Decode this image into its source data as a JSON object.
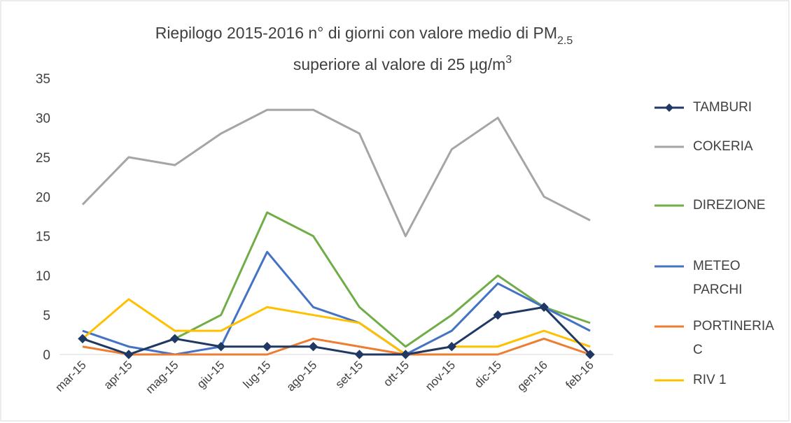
{
  "chart_data": {
    "type": "line",
    "title": {
      "line1": "Riepilogo  2015-2016 n° di giorni con valore medio di PM",
      "line1_sub": "2.5",
      "line2": "superiore al valore di 25 µg/m",
      "line2_sup": "3"
    },
    "categories": [
      "mar-15",
      "apr-15",
      "mag-15",
      "giu-15",
      "lug-15",
      "ago-15",
      "set-15",
      "ott-15",
      "nov-15",
      "dic-15",
      "gen-16",
      "feb-16"
    ],
    "series": [
      {
        "name": "TAMBURI",
        "color": "#1f3864",
        "marker": "diamond",
        "values": [
          2,
          0,
          2,
          1,
          1,
          1,
          0,
          0,
          1,
          5,
          6,
          0
        ]
      },
      {
        "name": "COKERIA",
        "color": "#a5a5a5",
        "values": [
          19,
          25,
          24,
          28,
          31,
          31,
          28,
          15,
          26,
          30,
          20,
          17
        ]
      },
      {
        "name": "DIREZIONE",
        "color": "#70ad47",
        "values": [
          2,
          0,
          2,
          5,
          18,
          15,
          6,
          1,
          5,
          10,
          6,
          4
        ]
      },
      {
        "name": "METEO PARCHI",
        "color": "#4472c4",
        "values": [
          3,
          1,
          0,
          1,
          13,
          6,
          4,
          0,
          3,
          9,
          6,
          3
        ]
      },
      {
        "name": "PORTINERIA C",
        "color": "#ed7d31",
        "values": [
          1,
          0,
          0,
          0,
          0,
          2,
          1,
          0,
          0,
          0,
          2,
          0
        ]
      },
      {
        "name": "RIV 1",
        "color": "#ffc000",
        "values": [
          2,
          7,
          3,
          3,
          6,
          5,
          4,
          0,
          1,
          1,
          3,
          1
        ]
      }
    ],
    "ylim": [
      0,
      35
    ],
    "yticks": [
      0,
      5,
      10,
      15,
      20,
      25,
      30,
      35
    ],
    "grid": false
  }
}
